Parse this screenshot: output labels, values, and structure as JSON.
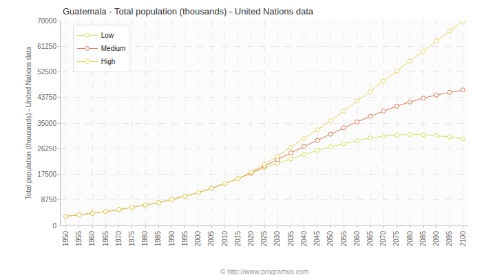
{
  "chart_data": {
    "type": "line",
    "title": "Guatemala - Total population (thousands) - United Nations data",
    "y_label": "Total population (thousands) - United Nations data",
    "x": [
      1950,
      1955,
      1960,
      1965,
      1970,
      1975,
      1980,
      1985,
      1990,
      1995,
      2000,
      2005,
      2010,
      2015,
      2020,
      2025,
      2030,
      2035,
      2040,
      2045,
      2050,
      2055,
      2060,
      2065,
      2070,
      2075,
      2080,
      2085,
      2090,
      2095,
      2100
    ],
    "series": [
      {
        "name": "Low",
        "color": "#d6e05a",
        "values": [
          3146,
          3620,
          4140,
          4740,
          5420,
          6200,
          7000,
          7800,
          8900,
          10000,
          11200,
          12700,
          14300,
          16000,
          17800,
          19700,
          21300,
          22800,
          24300,
          25700,
          26900,
          28000,
          29000,
          29900,
          30500,
          30900,
          31100,
          31000,
          30700,
          30300,
          29600
        ]
      },
      {
        "name": "Medium",
        "color": "#e5764f",
        "values": [
          3146,
          3620,
          4140,
          4740,
          5420,
          6200,
          7000,
          7800,
          8900,
          10000,
          11200,
          12700,
          14300,
          16000,
          18000,
          20300,
          22500,
          24800,
          27000,
          29100,
          31200,
          33400,
          35400,
          37300,
          39100,
          40800,
          42200,
          43500,
          44600,
          45500,
          46300
        ]
      },
      {
        "name": "High",
        "color": "#e6d85c",
        "values": [
          3146,
          3620,
          4140,
          4740,
          5420,
          6200,
          7000,
          7800,
          8900,
          10000,
          11200,
          12700,
          14300,
          16000,
          18300,
          21000,
          23700,
          26700,
          29700,
          32700,
          35800,
          39100,
          42500,
          45800,
          49300,
          52800,
          56100,
          59500,
          63000,
          66400,
          69900
        ]
      }
    ],
    "xlim": [
      1948,
      2102
    ],
    "xticks": [
      1950,
      1955,
      1960,
      1965,
      1970,
      1975,
      1980,
      1985,
      1990,
      1995,
      2000,
      2005,
      2010,
      2015,
      2020,
      2025,
      2030,
      2035,
      2040,
      2045,
      2050,
      2055,
      2060,
      2065,
      2070,
      2075,
      2080,
      2085,
      2090,
      2095,
      2100
    ],
    "ylim": [
      0,
      70000
    ],
    "yticks": [
      0,
      8750,
      17500,
      26250,
      35000,
      43750,
      52500,
      61250,
      70000
    ],
    "grid": true,
    "legend": "upper left",
    "marker": "circle",
    "line_style": "solid",
    "annotations": [
      {
        "text": "© http://www.programva.com"
      }
    ]
  }
}
